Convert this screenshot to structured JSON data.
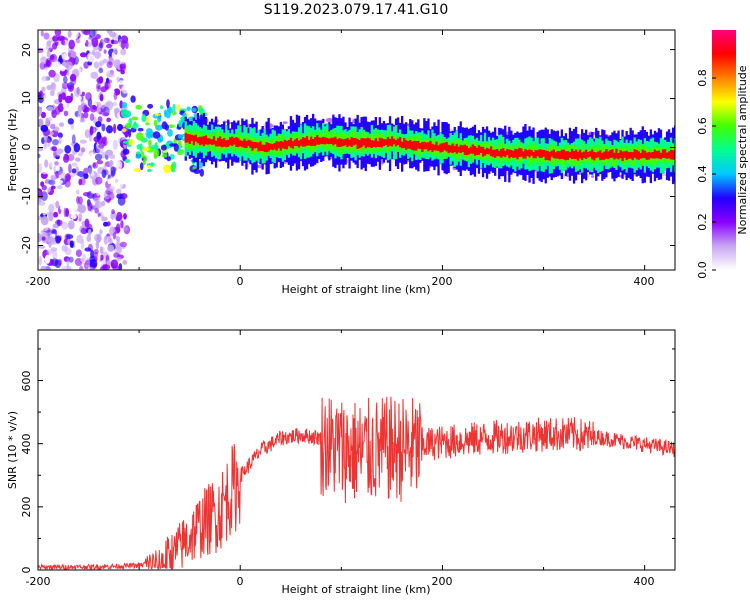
{
  "title": "S119.2023.079.17.41.G10",
  "colorbar": {
    "label": "Normalized spectral amplitude",
    "ticks": [
      "0.0",
      "0.2",
      "0.4",
      "0.6",
      "0.8"
    ],
    "colors": [
      "#ffffff",
      "#c7a6f2",
      "#8a00ff",
      "#2000ff",
      "#00c8ff",
      "#00ff90",
      "#40ff00",
      "#ffff00",
      "#ff8000",
      "#ff0000",
      "#ff0080"
    ]
  },
  "chart_data": [
    {
      "type": "heatmap",
      "xlabel": "Height of straight line (km)",
      "ylabel": "Frequency (Hz)",
      "xlim": [
        -200,
        430
      ],
      "ylim": [
        -25,
        24
      ],
      "xticks": [
        "-200",
        "0",
        "200",
        "400"
      ],
      "yticks": [
        "-20",
        "-10",
        "0",
        "10",
        "20"
      ],
      "ridge": {
        "x": [
          -110,
          -100,
          -80,
          -60,
          -40,
          -20,
          0,
          20,
          40,
          60,
          80,
          100,
          150,
          200,
          250,
          300,
          350,
          400,
          430
        ],
        "freq": [
          4,
          2,
          2,
          2,
          1.5,
          1,
          1,
          0,
          0.5,
          1,
          1.5,
          1,
          1,
          0,
          -1,
          -1.5,
          -1.5,
          -1.5,
          -1.5
        ]
      }
    },
    {
      "type": "line",
      "xlabel": "Height of straight line (km)",
      "ylabel": "SNR (10 * v/v)",
      "xlim": [
        -200,
        430
      ],
      "ylim": [
        0,
        760
      ],
      "xticks": [
        "-200",
        "0",
        "200",
        "400"
      ],
      "yticks": [
        "0",
        "200",
        "400",
        "600"
      ],
      "color": "#ee3333",
      "envelope": {
        "x": [
          -200,
          -150,
          -100,
          -80,
          -60,
          -40,
          -20,
          -10,
          0,
          20,
          40,
          60,
          80,
          100,
          120,
          150,
          170,
          200,
          250,
          300,
          330,
          360,
          400,
          430
        ],
        "base": [
          10,
          10,
          15,
          25,
          80,
          150,
          200,
          260,
          300,
          380,
          420,
          430,
          420,
          400,
          390,
          400,
          400,
          410,
          425,
          435,
          435,
          420,
          400,
          385
        ]
      }
    }
  ]
}
